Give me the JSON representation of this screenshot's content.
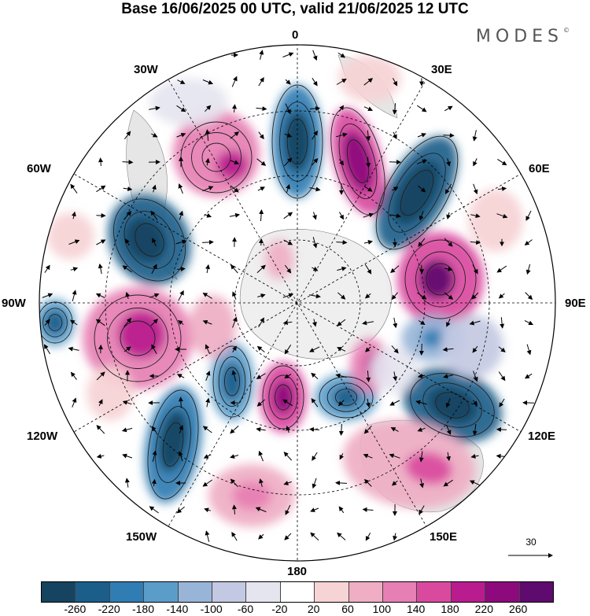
{
  "title": "Base 16/06/2025 00 UTC, valid 21/06/2025 12 UTC",
  "brand": "MODES",
  "brand_mark": "©",
  "longitude_labels": {
    "n0": "0",
    "e30": "30E",
    "e60": "60E",
    "e90": "90E",
    "e120": "120E",
    "e150": "150E",
    "s180": "180",
    "w150": "150W",
    "w120": "120W",
    "w90": "90W",
    "w60": "60W",
    "w30": "30W"
  },
  "reference_vector": "30",
  "colorbar": {
    "colors": [
      "#16435f",
      "#1b5e8a",
      "#2f7db3",
      "#5b9dca",
      "#98b5d8",
      "#c3c9e2",
      "#e5e5f0",
      "#ffffff",
      "#f6d3d5",
      "#efaec4",
      "#e67fb3",
      "#d94a9f",
      "#b81c8e",
      "#8c0a7c",
      "#5e0a6e"
    ],
    "ticks": [
      "-260",
      "-220",
      "-180",
      "-140",
      "-100",
      "-60",
      "-20",
      "20",
      "60",
      "100",
      "140",
      "180",
      "220",
      "260"
    ]
  },
  "map_colors": {
    "land": "#e6e6e6",
    "antarctica": "#efefef",
    "grid": "#000000"
  }
}
